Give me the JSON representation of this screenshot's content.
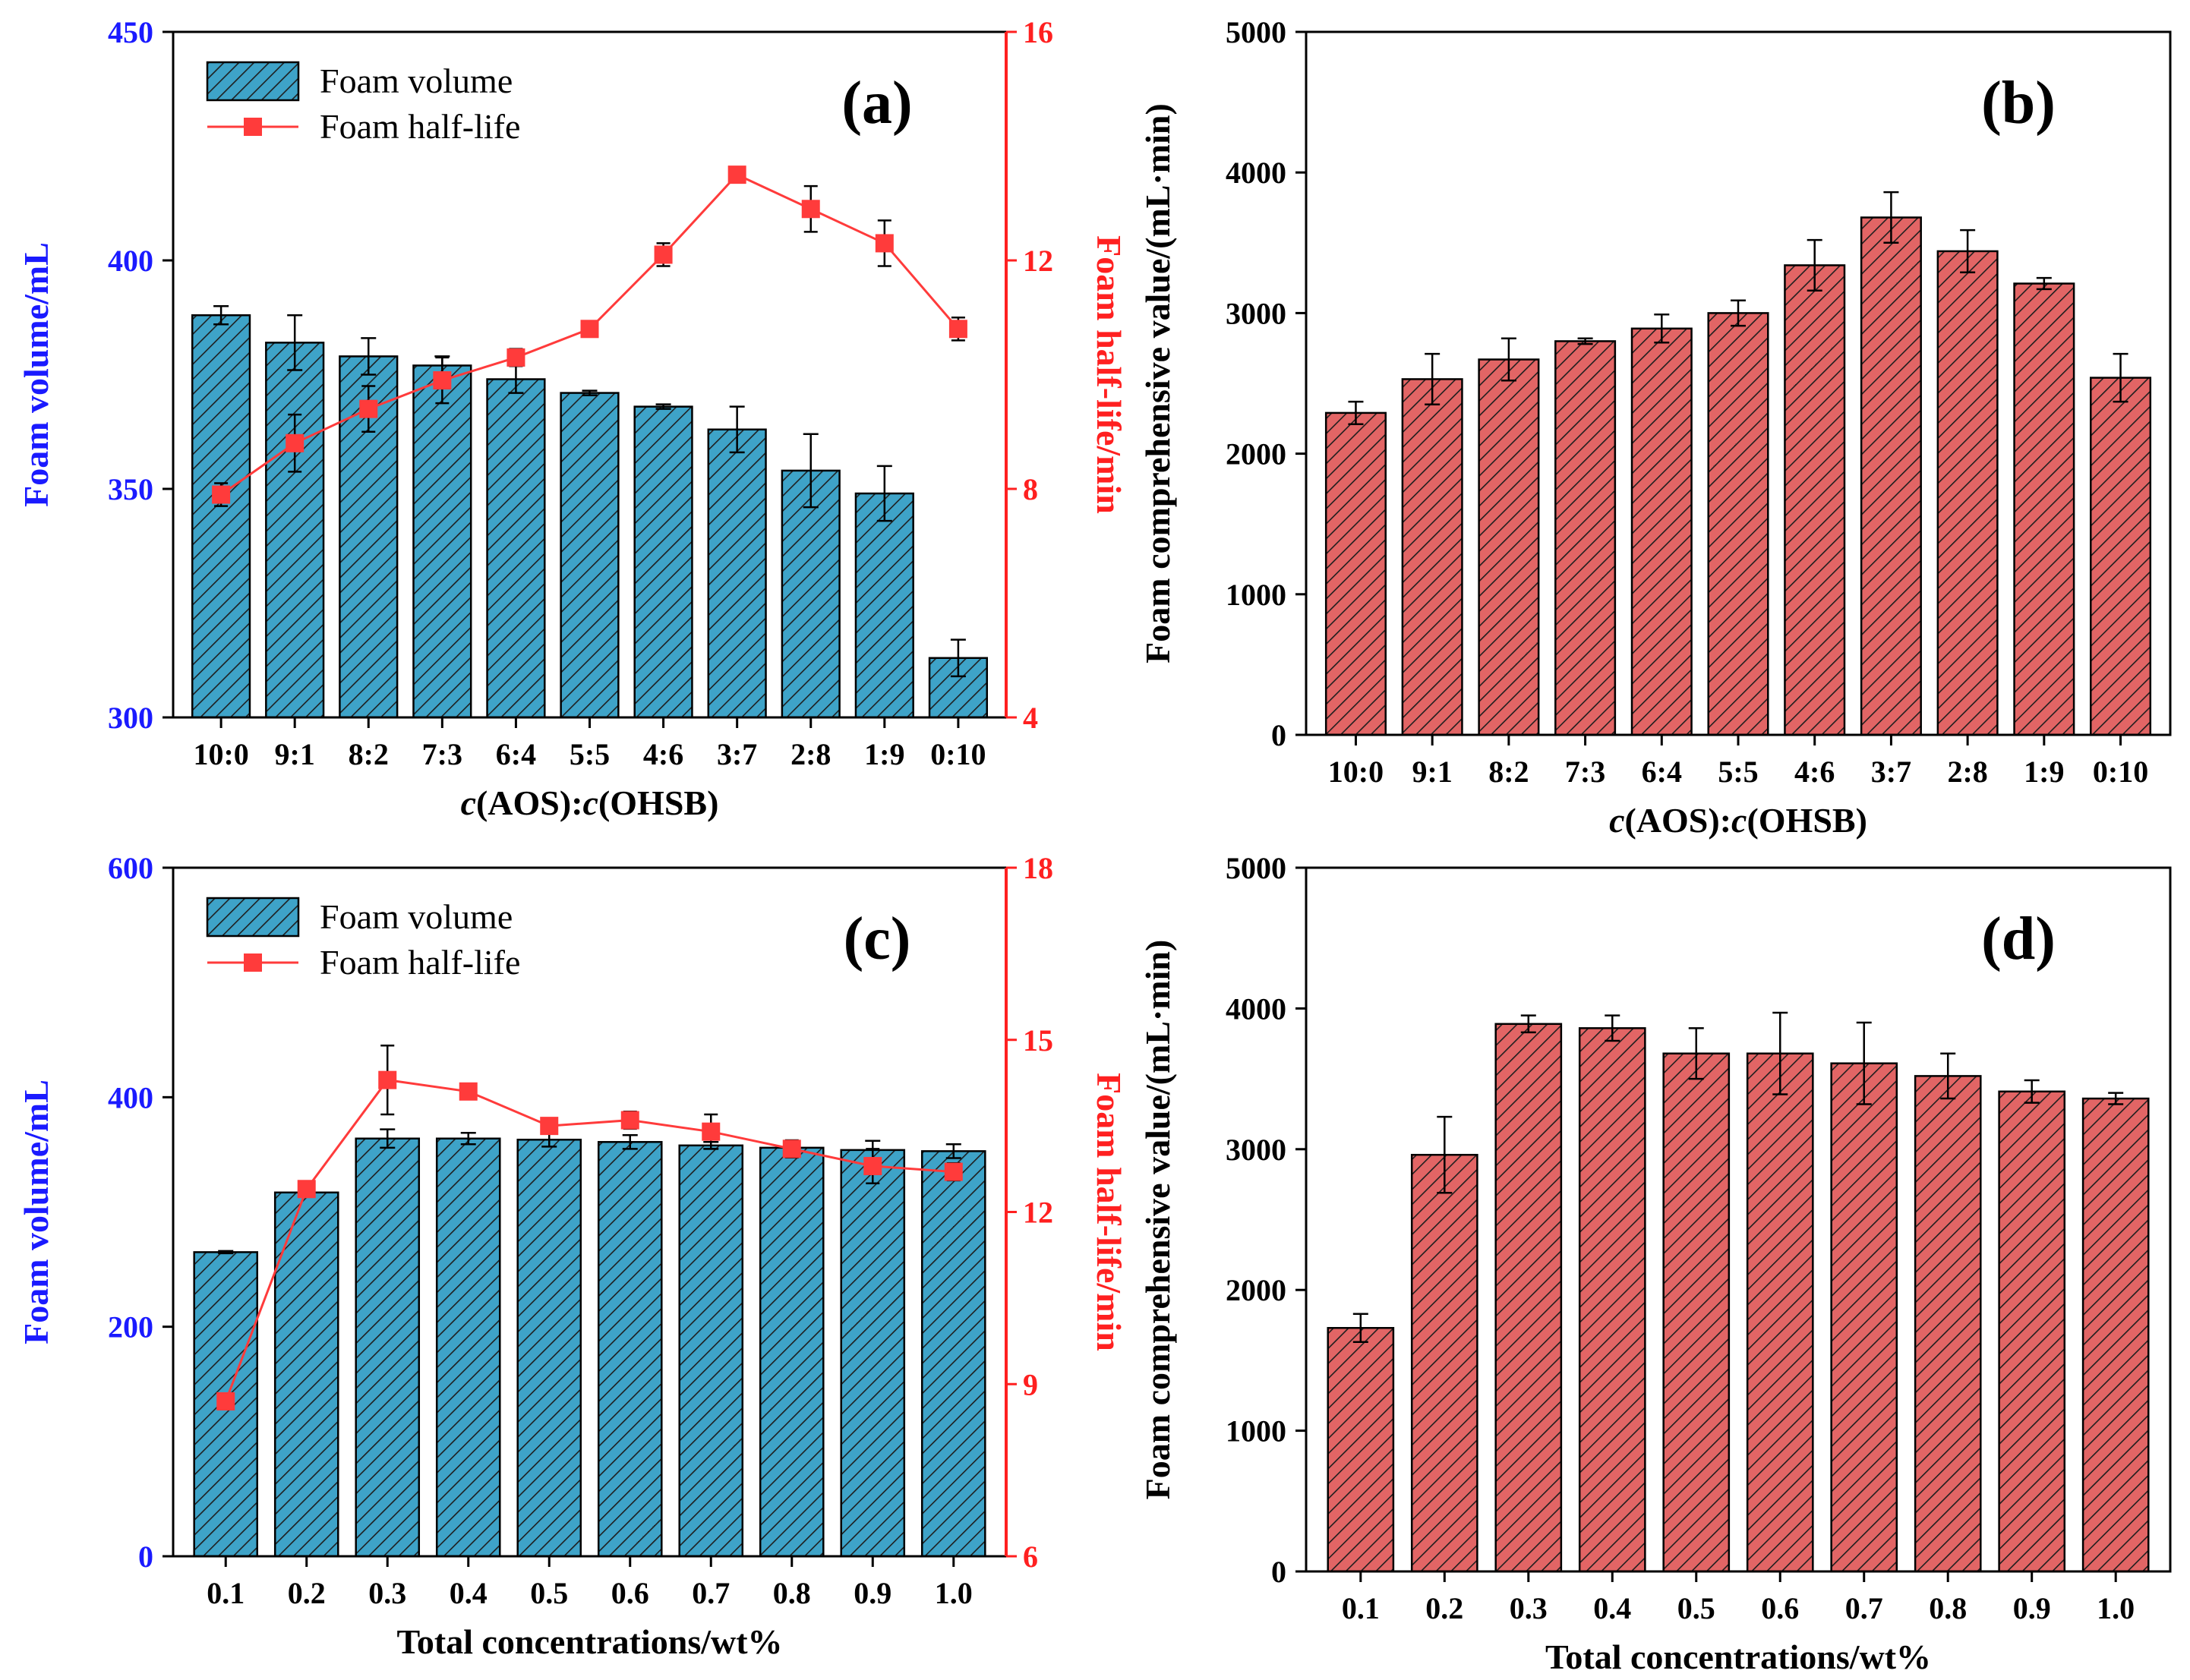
{
  "colors": {
    "blue_bar": "#3ea3c8",
    "red_bar": "#e26565",
    "hatch": "#1e1e1e",
    "line": "#ff3b3b",
    "left_axis": "#1a1aff",
    "right_axis": "#ff2020",
    "axis": "#000000"
  },
  "chart_data": [
    {
      "id": "a",
      "type": "bar",
      "label": "(a)",
      "xlabel_parts": [
        "c",
        "(AOS):",
        "c",
        "(OHSB)"
      ],
      "categories": [
        "10:0",
        "9:1",
        "8:2",
        "7:3",
        "6:4",
        "5:5",
        "4:6",
        "3:7",
        "2:8",
        "1:9",
        "0:10"
      ],
      "ylabel": "Foam volume/mL",
      "ylim": [
        300,
        450
      ],
      "yticks": [
        300,
        350,
        400,
        450
      ],
      "y2label": "Foam half-life/min",
      "y2lim": [
        4,
        16
      ],
      "y2ticks": [
        4,
        8,
        12,
        16
      ],
      "legend": [
        "Foam volume",
        "Foam half-life"
      ],
      "legend_position": "top-left",
      "series": [
        {
          "name": "Foam volume",
          "type": "bar",
          "axis": "left",
          "color": "blue",
          "values": [
            388,
            382,
            379,
            377,
            374,
            371,
            368,
            363,
            354,
            349,
            313
          ],
          "errors": [
            2,
            6,
            4,
            2,
            3,
            0.5,
            0.5,
            5,
            8,
            6,
            4
          ]
        },
        {
          "name": "Foam half-life",
          "type": "line",
          "axis": "right",
          "values": [
            7.9,
            8.8,
            9.4,
            9.9,
            10.3,
            10.8,
            12.1,
            13.5,
            12.9,
            12.3,
            10.8
          ],
          "errors": [
            0.2,
            0.5,
            0.4,
            0.4,
            0.15,
            0.1,
            0.2,
            0.1,
            0.4,
            0.4,
            0.2
          ]
        }
      ]
    },
    {
      "id": "b",
      "type": "bar",
      "label": "(b)",
      "xlabel_parts": [
        "c",
        "(AOS):",
        "c",
        "(OHSB)"
      ],
      "categories": [
        "10:0",
        "9:1",
        "8:2",
        "7:3",
        "6:4",
        "5:5",
        "4:6",
        "3:7",
        "2:8",
        "1:9",
        "0:10"
      ],
      "ylabel": "Foam comprehensive value/(mL·min)",
      "ylim": [
        0,
        5000
      ],
      "yticks": [
        0,
        1000,
        2000,
        3000,
        4000,
        5000
      ],
      "series": [
        {
          "name": "Foam comprehensive value",
          "type": "bar",
          "axis": "left",
          "color": "red",
          "values": [
            2290,
            2530,
            2670,
            2800,
            2890,
            3000,
            3340,
            3680,
            3440,
            3210,
            2540
          ],
          "errors": [
            80,
            180,
            150,
            20,
            100,
            90,
            180,
            180,
            150,
            40,
            170
          ]
        }
      ]
    },
    {
      "id": "c",
      "type": "bar",
      "label": "(c)",
      "xlabel": "Total concentrations/wt%",
      "categories": [
        "0.1",
        "0.2",
        "0.3",
        "0.4",
        "0.5",
        "0.6",
        "0.7",
        "0.8",
        "0.9",
        "1.0"
      ],
      "ylabel": "Foam volume/mL",
      "ylim": [
        0,
        600
      ],
      "yticks": [
        0,
        200,
        400,
        600
      ],
      "y2label": "Foam half-life/min",
      "y2lim": [
        6,
        18
      ],
      "y2ticks": [
        6,
        9,
        12,
        15,
        18
      ],
      "legend": [
        "Foam volume",
        "Foam half-life"
      ],
      "legend_position": "top-left",
      "series": [
        {
          "name": "Foam volume",
          "type": "bar",
          "axis": "left",
          "color": "blue",
          "values": [
            265,
            317,
            364,
            364,
            363,
            361,
            358,
            356,
            354,
            353
          ],
          "errors": [
            1,
            2,
            8,
            5,
            6,
            6,
            3,
            1,
            8,
            6
          ]
        },
        {
          "name": "Foam half-life",
          "type": "line",
          "axis": "right",
          "values": [
            8.7,
            12.4,
            14.3,
            14.1,
            13.5,
            13.6,
            13.4,
            13.1,
            12.8,
            12.7
          ],
          "errors": [
            0.05,
            0.1,
            0.6,
            0.1,
            0.1,
            0.15,
            0.3,
            0.15,
            0.3,
            0.15
          ]
        }
      ]
    },
    {
      "id": "d",
      "type": "bar",
      "label": "(d)",
      "xlabel": "Total concentrations/wt%",
      "categories": [
        "0.1",
        "0.2",
        "0.3",
        "0.4",
        "0.5",
        "0.6",
        "0.7",
        "0.8",
        "0.9",
        "1.0"
      ],
      "ylabel": "Foam comprehensive value/(mL·min)",
      "ylim": [
        0,
        5000
      ],
      "yticks": [
        0,
        1000,
        2000,
        3000,
        4000,
        5000
      ],
      "series": [
        {
          "name": "Foam comprehensive value",
          "type": "bar",
          "axis": "left",
          "color": "red",
          "values": [
            1730,
            2960,
            3890,
            3860,
            3680,
            3680,
            3610,
            3520,
            3410,
            3360
          ],
          "errors": [
            100,
            270,
            60,
            90,
            180,
            290,
            290,
            160,
            80,
            40
          ]
        }
      ]
    }
  ]
}
